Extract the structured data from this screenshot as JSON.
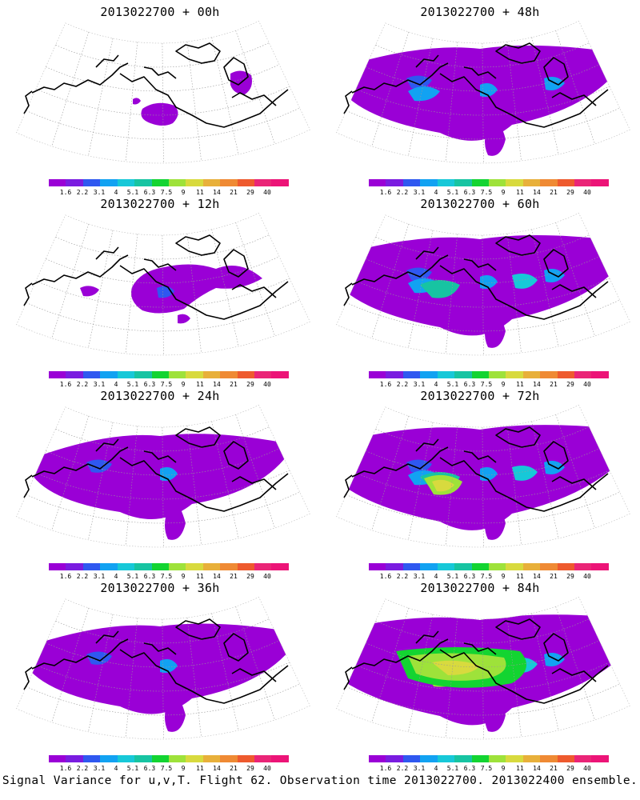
{
  "panels": [
    {
      "title": "2013022700 + 00h",
      "level": 0
    },
    {
      "title": "2013022700 + 48h",
      "level": 4
    },
    {
      "title": "2013022700 + 12h",
      "level": 1
    },
    {
      "title": "2013022700 + 60h",
      "level": 5
    },
    {
      "title": "2013022700 + 24h",
      "level": 2
    },
    {
      "title": "2013022700 + 72h",
      "level": 6
    },
    {
      "title": "2013022700 + 36h",
      "level": 3
    },
    {
      "title": "2013022700 + 84h",
      "level": 7
    }
  ],
  "colorbar": {
    "colors": [
      "#9a00d6",
      "#7a1ce0",
      "#2f58f0",
      "#12a2f2",
      "#17c8d8",
      "#17c4a2",
      "#13d431",
      "#9ee23a",
      "#d8da3e",
      "#e8b03a",
      "#ef8a34",
      "#ee5a2e",
      "#ea2577",
      "#ec1477"
    ],
    "labels": [
      "1.6",
      "2.2",
      "3.1",
      "4",
      "5.1",
      "6.3",
      "7.5",
      "9",
      "11",
      "14",
      "21",
      "29",
      "40"
    ]
  },
  "caption": "Signal Variance for u,v,T. Flight 62. Observation time 2013022700. 2013022400 ensemble."
}
